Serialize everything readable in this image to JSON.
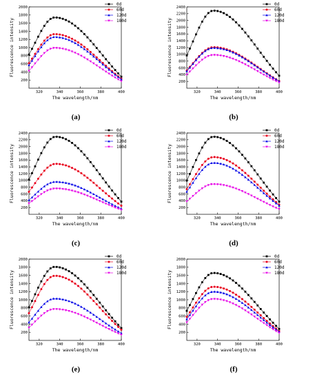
{
  "chart_data": [
    {
      "type": "line",
      "caption": "(a)",
      "xlabel": "The wavelength/nm",
      "ylabel": "Fluorescence intensity",
      "xlim": [
        310,
        400
      ],
      "ylim": [
        0,
        2000
      ],
      "xticks": [
        "320",
        "340",
        "360",
        "380",
        "400"
      ],
      "yticks": [
        "200",
        "400",
        "600",
        "800",
        "1000",
        "1200",
        "1400",
        "1600",
        "1800",
        "2000"
      ],
      "legend_position": "top-right",
      "peak_x": 335,
      "series": [
        {
          "name": "0d",
          "color": "#000000",
          "marker": "square",
          "start": 850,
          "peak": 1740,
          "end": 180
        },
        {
          "name": "60d",
          "color": "#e8001c",
          "marker": "circle",
          "start": 620,
          "peak": 1330,
          "end": 160
        },
        {
          "name": "120d",
          "color": "#0000e6",
          "marker": "triangle-up",
          "start": 560,
          "peak": 1260,
          "end": 150
        },
        {
          "name": "180d",
          "color": "#e600e6",
          "marker": "triangle-down",
          "start": 400,
          "peak": 990,
          "end": 120
        }
      ]
    },
    {
      "type": "line",
      "caption": "(b)",
      "xlabel": "The wavelength/nm",
      "ylabel": "Fluorescence intensity",
      "xlim": [
        310,
        400
      ],
      "ylim": [
        0,
        2400
      ],
      "xticks": [
        "320",
        "340",
        "360",
        "380",
        "400"
      ],
      "yticks": [
        "200",
        "400",
        "600",
        "800",
        "1000",
        "1200",
        "1400",
        "1600",
        "1800",
        "2000",
        "2200",
        "2400"
      ],
      "legend_position": "top-right",
      "peak_x": 336,
      "series": [
        {
          "name": "0d",
          "color": "#000000",
          "marker": "square",
          "start": 900,
          "peak": 2290,
          "end": 230
        },
        {
          "name": "60d",
          "color": "#e8001c",
          "marker": "circle",
          "start": 500,
          "peak": 1210,
          "end": 150
        },
        {
          "name": "120d",
          "color": "#0000e6",
          "marker": "triangle-up",
          "start": 470,
          "peak": 1190,
          "end": 140
        },
        {
          "name": "180d",
          "color": "#e600e6",
          "marker": "triangle-down",
          "start": 360,
          "peak": 980,
          "end": 110
        }
      ]
    },
    {
      "type": "line",
      "caption": "(c)",
      "xlabel": "The wavelength/nm",
      "ylabel": "Fluorescence intensity",
      "xlim": [
        310,
        400
      ],
      "ylim": [
        0,
        2400
      ],
      "xticks": [
        "320",
        "340",
        "360",
        "380",
        "400"
      ],
      "yticks": [
        "200",
        "400",
        "600",
        "800",
        "1000",
        "1200",
        "1400",
        "1600",
        "1800",
        "2000",
        "2200",
        "2400"
      ],
      "legend_position": "top-right",
      "peak_x": 336,
      "series": [
        {
          "name": "0d",
          "color": "#000000",
          "marker": "square",
          "start": 1000,
          "peak": 2290,
          "end": 240
        },
        {
          "name": "60d",
          "color": "#e8001c",
          "marker": "circle",
          "start": 650,
          "peak": 1490,
          "end": 170
        },
        {
          "name": "120d",
          "color": "#0000e6",
          "marker": "triangle-up",
          "start": 400,
          "peak": 960,
          "end": 110
        },
        {
          "name": "180d",
          "color": "#e600e6",
          "marker": "triangle-down",
          "start": 300,
          "peak": 760,
          "end": 90
        }
      ]
    },
    {
      "type": "line",
      "caption": "(d)",
      "xlabel": "The wavelength/nm",
      "ylabel": "Fluorescence intensity",
      "xlim": [
        310,
        400
      ],
      "ylim": [
        0,
        2400
      ],
      "xticks": [
        "320",
        "340",
        "360",
        "380",
        "400"
      ],
      "yticks": [
        "200",
        "400",
        "600",
        "800",
        "1000",
        "1200",
        "1400",
        "1600",
        "1800",
        "2000",
        "2200",
        "2400"
      ],
      "legend_position": "top-right",
      "peak_x": 336,
      "series": [
        {
          "name": "0d",
          "color": "#000000",
          "marker": "square",
          "start": 950,
          "peak": 2290,
          "end": 240
        },
        {
          "name": "60d",
          "color": "#e8001c",
          "marker": "circle",
          "start": 720,
          "peak": 1690,
          "end": 190
        },
        {
          "name": "120d",
          "color": "#0000e6",
          "marker": "triangle-up",
          "start": 640,
          "peak": 1520,
          "end": 170
        },
        {
          "name": "180d",
          "color": "#e600e6",
          "marker": "triangle-down",
          "start": 360,
          "peak": 890,
          "end": 100
        }
      ]
    },
    {
      "type": "line",
      "caption": "(e)",
      "xlabel": "The wavelength/nm",
      "ylabel": "Fluorescence intensity",
      "xlim": [
        310,
        400
      ],
      "ylim": [
        0,
        2000
      ],
      "xticks": [
        "320",
        "340",
        "360",
        "380",
        "400"
      ],
      "yticks": [
        "200",
        "400",
        "600",
        "800",
        "1000",
        "1200",
        "1400",
        "1600",
        "1800",
        "2000"
      ],
      "legend_position": "top-right",
      "peak_x": 335,
      "series": [
        {
          "name": "0d",
          "color": "#000000",
          "marker": "square",
          "start": 800,
          "peak": 1810,
          "end": 200
        },
        {
          "name": "60d",
          "color": "#e8001c",
          "marker": "circle",
          "start": 620,
          "peak": 1590,
          "end": 170
        },
        {
          "name": "120d",
          "color": "#0000e6",
          "marker": "triangle-up",
          "start": 420,
          "peak": 1030,
          "end": 120
        },
        {
          "name": "180d",
          "color": "#e600e6",
          "marker": "triangle-down",
          "start": 280,
          "peak": 770,
          "end": 100
        }
      ]
    },
    {
      "type": "line",
      "caption": "(f)",
      "xlabel": "The wavelength/nm",
      "ylabel": "Fluorescence intensity",
      "xlim": [
        310,
        400
      ],
      "ylim": [
        0,
        2000
      ],
      "xticks": [
        "320",
        "340",
        "360",
        "380",
        "400"
      ],
      "yticks": [
        "200",
        "400",
        "600",
        "800",
        "1000",
        "1200",
        "1400",
        "1600",
        "1800",
        "2000"
      ],
      "legend_position": "top-right",
      "peak_x": 336,
      "series": [
        {
          "name": "0d",
          "color": "#000000",
          "marker": "square",
          "start": 700,
          "peak": 1660,
          "end": 190
        },
        {
          "name": "60d",
          "color": "#e8001c",
          "marker": "circle",
          "start": 560,
          "peak": 1320,
          "end": 160
        },
        {
          "name": "120d",
          "color": "#0000e6",
          "marker": "triangle-up",
          "start": 500,
          "peak": 1200,
          "end": 150
        },
        {
          "name": "180d",
          "color": "#e600e6",
          "marker": "triangle-down",
          "start": 420,
          "peak": 1020,
          "end": 130
        }
      ]
    }
  ]
}
